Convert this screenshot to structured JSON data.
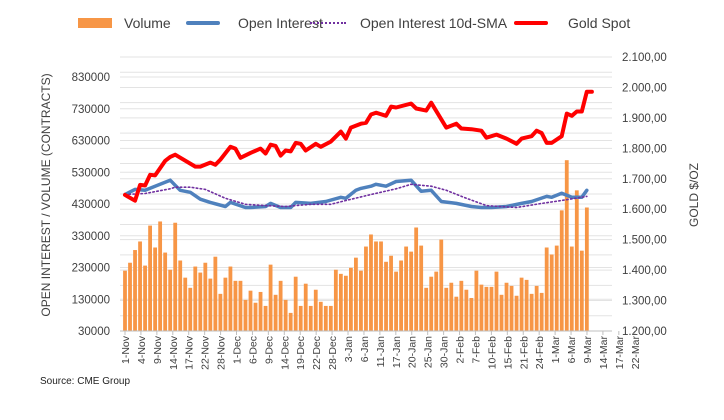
{
  "chart_data": {
    "type": "bar+line",
    "title": "",
    "legend": [
      "Volume",
      "Open Interest",
      "Open Interest 10d-SMA",
      "Gold Spot"
    ],
    "legend_position": "top",
    "ylabel": "OPEN INTEREST / VOLUME (CONTRACTS)",
    "y2label": "GOLD $/OZ",
    "y_ticks": [
      "830000",
      "730000",
      "630000",
      "530000",
      "430000",
      "330000",
      "230000",
      "130000",
      "30000"
    ],
    "y_tick_values": [
      830000,
      730000,
      630000,
      530000,
      430000,
      330000,
      230000,
      130000,
      30000
    ],
    "y2_ticks": [
      "2.100,00",
      "2.000,00",
      "1.900,00",
      "1.800,00",
      "1.700,00",
      "1.600,00",
      "1.500,00",
      "1.400,00",
      "1.300,00",
      "1.200,00"
    ],
    "y2_tick_values": [
      2100,
      2000,
      1900,
      1800,
      1700,
      1600,
      1500,
      1400,
      1300,
      1200
    ],
    "ylim": [
      30000,
      893000
    ],
    "y2lim": [
      1200,
      2100
    ],
    "x_ticks": [
      "1-Nov",
      "4-Nov",
      "9-Nov",
      "14-Nov",
      "17-Nov",
      "22-Nov",
      "28-Nov",
      "1-Dec",
      "6-Dec",
      "9-Dec",
      "14-Dec",
      "19-Dec",
      "22-Dec",
      "28-Dec",
      "3-Jan",
      "6-Jan",
      "11-Jan",
      "17-Jan",
      "20-Jan",
      "25-Jan",
      "30-Jan",
      "2-Feb",
      "7-Feb",
      "10-Feb",
      "15-Feb",
      "21-Feb",
      "24-Feb",
      "1-Mar",
      "6-Mar",
      "9-Mar",
      "14-Mar",
      "17-Mar",
      "22-Mar"
    ],
    "series": [
      {
        "name": "Volume",
        "type": "bar",
        "color": "#F79646",
        "values": [
          220000,
          245000,
          285000,
          312000,
          236000,
          362000,
          293000,
          375000,
          277000,
          223000,
          371000,
          252000,
          198000,
          166000,
          233000,
          214000,
          245000,
          195000,
          264000,
          147000,
          198000,
          233000,
          188000,
          188000,
          128000,
          157000,
          119000,
          153000,
          109000,
          239000,
          144000,
          188000,
          128000,
          87000,
          201000,
          109000,
          179000,
          109000,
          160000,
          122000,
          109000,
          109000,
          223000,
          210000,
          204000,
          229000,
          261000,
          220000,
          296000,
          334000,
          312000,
          312000,
          248000,
          267000,
          217000,
          252000,
          296000,
          280000,
          356000,
          299000,
          166000,
          201000,
          217000,
          318000,
          166000,
          182000,
          138000,
          188000,
          160000,
          134000,
          220000,
          176000,
          169000,
          169000,
          217000,
          144000,
          182000,
          172000,
          141000,
          198000,
          191000,
          147000,
          172000,
          150000,
          293000,
          271000,
          299000,
          410000,
          568000,
          296000,
          473000,
          283000,
          419000
        ]
      },
      {
        "name": "Open Interest",
        "type": "line",
        "color": "#4F81BD",
        "axis": "left",
        "points": [
          [
            0,
            460000
          ],
          [
            2,
            476000
          ],
          [
            4,
            473000
          ],
          [
            6,
            486000
          ],
          [
            7,
            492000
          ],
          [
            9,
            505000
          ],
          [
            10,
            489000
          ],
          [
            11,
            473000
          ],
          [
            13,
            467000
          ],
          [
            15,
            445000
          ],
          [
            17,
            435000
          ],
          [
            20,
            422000
          ],
          [
            21,
            435000
          ],
          [
            24,
            419000
          ],
          [
            25,
            419000
          ],
          [
            28,
            422000
          ],
          [
            29,
            432000
          ],
          [
            31,
            419000
          ],
          [
            33,
            419000
          ],
          [
            34,
            435000
          ],
          [
            37,
            432000
          ],
          [
            40,
            438000
          ],
          [
            43,
            451000
          ],
          [
            44,
            448000
          ],
          [
            46,
            473000
          ],
          [
            47,
            479000
          ],
          [
            49,
            486000
          ],
          [
            50,
            492000
          ],
          [
            52,
            486000
          ],
          [
            54,
            501000
          ],
          [
            57,
            505000
          ],
          [
            59,
            470000
          ],
          [
            61,
            473000
          ],
          [
            63,
            438000
          ],
          [
            66,
            432000
          ],
          [
            69,
            422000
          ],
          [
            71,
            419000
          ],
          [
            73,
            419000
          ],
          [
            76,
            422000
          ],
          [
            79,
            432000
          ],
          [
            81,
            438000
          ],
          [
            84,
            454000
          ],
          [
            85,
            451000
          ],
          [
            87,
            464000
          ],
          [
            89,
            451000
          ],
          [
            91,
            451000
          ],
          [
            92,
            473000
          ]
        ]
      },
      {
        "name": "Open Interest 10d-SMA",
        "type": "line",
        "style": "dotted",
        "color": "#7030A0",
        "axis": "left",
        "points": [
          [
            0,
            460000
          ],
          [
            4,
            463000
          ],
          [
            9,
            478000
          ],
          [
            10,
            483000
          ],
          [
            13,
            483000
          ],
          [
            16,
            476000
          ],
          [
            20,
            448000
          ],
          [
            24,
            429000
          ],
          [
            28,
            425000
          ],
          [
            32,
            422000
          ],
          [
            37,
            429000
          ],
          [
            41,
            429000
          ],
          [
            44,
            441000
          ],
          [
            49,
            460000
          ],
          [
            54,
            478000
          ],
          [
            57,
            492000
          ],
          [
            61,
            486000
          ],
          [
            64,
            473000
          ],
          [
            68,
            448000
          ],
          [
            72,
            425000
          ],
          [
            78,
            419000
          ],
          [
            83,
            432000
          ],
          [
            87,
            441000
          ],
          [
            92,
            454000
          ]
        ]
      },
      {
        "name": "Gold Spot",
        "type": "line",
        "color": "#FF0000",
        "axis": "right",
        "points": [
          [
            0,
            1647
          ],
          [
            2,
            1628
          ],
          [
            3,
            1680
          ],
          [
            4,
            1678
          ],
          [
            5,
            1713
          ],
          [
            6,
            1711
          ],
          [
            8,
            1759
          ],
          [
            9,
            1772
          ],
          [
            10,
            1779
          ],
          [
            14,
            1740
          ],
          [
            15,
            1740
          ],
          [
            17,
            1753
          ],
          [
            18,
            1746
          ],
          [
            19,
            1763
          ],
          [
            21,
            1805
          ],
          [
            22,
            1799
          ],
          [
            23,
            1769
          ],
          [
            25,
            1785
          ],
          [
            27,
            1799
          ],
          [
            28,
            1783
          ],
          [
            29,
            1812
          ],
          [
            30,
            1808
          ],
          [
            31,
            1776
          ],
          [
            32,
            1793
          ],
          [
            33,
            1790
          ],
          [
            34,
            1818
          ],
          [
            35,
            1815
          ],
          [
            36,
            1793
          ],
          [
            38,
            1815
          ],
          [
            39,
            1805
          ],
          [
            41,
            1822
          ],
          [
            43,
            1855
          ],
          [
            44,
            1832
          ],
          [
            45,
            1868
          ],
          [
            47,
            1881
          ],
          [
            48,
            1884
          ],
          [
            49,
            1911
          ],
          [
            50,
            1917
          ],
          [
            52,
            1907
          ],
          [
            53,
            1937
          ],
          [
            54,
            1934
          ],
          [
            57,
            1947
          ],
          [
            58,
            1931
          ],
          [
            60,
            1924
          ],
          [
            61,
            1950
          ],
          [
            64,
            1868
          ],
          [
            66,
            1881
          ],
          [
            67,
            1865
          ],
          [
            69,
            1863
          ],
          [
            71,
            1858
          ],
          [
            72,
            1835
          ],
          [
            74,
            1845
          ],
          [
            76,
            1832
          ],
          [
            78,
            1815
          ],
          [
            79,
            1832
          ],
          [
            81,
            1840
          ],
          [
            82,
            1858
          ],
          [
            83,
            1850
          ],
          [
            84,
            1818
          ],
          [
            85,
            1818
          ],
          [
            87,
            1840
          ],
          [
            88,
            1914
          ],
          [
            89,
            1907
          ],
          [
            90,
            1921
          ],
          [
            91,
            1921
          ],
          [
            92,
            1986
          ],
          [
            93,
            1986
          ]
        ]
      }
    ],
    "grid": true
  },
  "source": "Source: CME Group"
}
